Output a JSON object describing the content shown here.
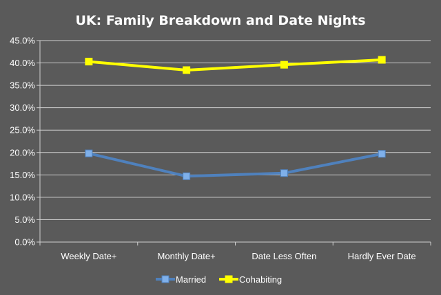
{
  "chart_data": {
    "type": "line",
    "title": "UK: Family Breakdown and Date Nights",
    "categories": [
      "Weekly Date+",
      "Monthly Date+",
      "Date Less Often",
      "Hardly Ever Date"
    ],
    "series": [
      {
        "name": "Married",
        "values": [
          19.8,
          14.7,
          15.4,
          19.7
        ],
        "color": "#4f81bd",
        "marker_color": "#7fb0ea"
      },
      {
        "name": "Cohabiting",
        "values": [
          40.3,
          38.4,
          39.6,
          40.7
        ],
        "color": "#ffff00",
        "marker_color": "#ffff00"
      }
    ],
    "ylim": [
      0,
      45
    ],
    "yticks": [
      "0.0%",
      "5.0%",
      "10.0%",
      "15.0%",
      "20.0%",
      "25.0%",
      "30.0%",
      "35.0%",
      "40.0%",
      "45.0%"
    ],
    "grid": true,
    "legend": "bottom",
    "background": "#5a5a5a",
    "text_color": "#ffffff"
  }
}
